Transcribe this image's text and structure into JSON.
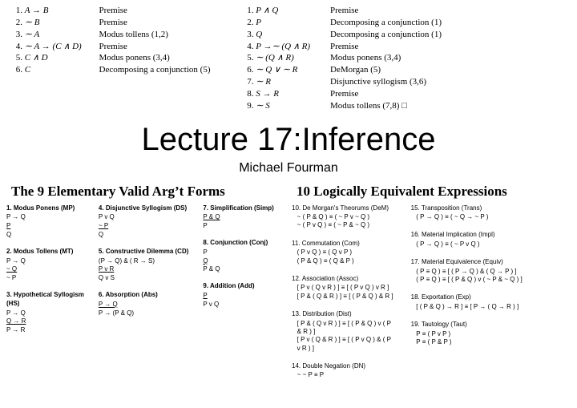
{
  "proofs": {
    "left": [
      {
        "n": "1.",
        "e": "A → B",
        "j": "Premise"
      },
      {
        "n": "2.",
        "e": "∼ B",
        "j": "Premise"
      },
      {
        "n": "3.",
        "e": "∼ A",
        "j": "Modus tollens (1,2)"
      },
      {
        "n": "4.",
        "e": "∼ A → (C ∧ D)",
        "j": "Premise"
      },
      {
        "n": "5.",
        "e": "C ∧ D",
        "j": "Modus ponens (3,4)"
      },
      {
        "n": "6.",
        "e": "C",
        "j": "Decomposing a conjunction (5)"
      }
    ],
    "right": [
      {
        "n": "1.",
        "e": "P ∧ Q",
        "j": "Premise"
      },
      {
        "n": "2.",
        "e": "P",
        "j": "Decomposing a conjunction (1)"
      },
      {
        "n": "3.",
        "e": "Q",
        "j": "Decomposing a conjunction (1)"
      },
      {
        "n": "4.",
        "e": "P →∼ (Q ∧ R)",
        "j": "Premise"
      },
      {
        "n": "5.",
        "e": "∼ (Q ∧ R)",
        "j": "Modus ponens (3,4)"
      },
      {
        "n": "6.",
        "e": "∼ Q ∨ ∼ R",
        "j": "DeMorgan (5)"
      },
      {
        "n": "7.",
        "e": "∼ R",
        "j": "Disjunctive syllogism (3,6)"
      },
      {
        "n": "8.",
        "e": "S → R",
        "j": "Premise"
      },
      {
        "n": "9.",
        "e": "∼ S",
        "j": "Modus tollens (7,8)   □"
      }
    ]
  },
  "title": "Lecture 17:Inference",
  "author": "Michael Fourman",
  "leftPanel": {
    "heading": "The 9 Elementary Valid Arg’t Forms",
    "cols": [
      [
        {
          "t": "1. Modus Ponens (MP)",
          "lines": [
            "P → Q",
            "<u>P        </u>",
            "Q"
          ]
        },
        {
          "t": "2. Modus Tollens (MT)",
          "lines": [
            "P → Q",
            "<u>~ Q      </u>",
            "~ P"
          ]
        },
        {
          "t": "3. Hypothetical Syllogism\n      (HS)",
          "lines": [
            "P → Q",
            "<u>Q → R  </u>",
            "P → R"
          ]
        }
      ],
      [
        {
          "t": "4. Disjunctive Syllogism (DS)",
          "lines": [
            "P v Q",
            "<u>~ P     </u>",
            "Q"
          ]
        },
        {
          "t": "5. Constructive Dilemma (CD)",
          "lines": [
            "(P → Q) & ( R → S)",
            "<u>P v R                  </u>",
            "Q v S"
          ]
        },
        {
          "t": "6. Absorption (Abs)",
          "lines": [
            "<u>P → Q        </u>",
            "P → (P & Q)"
          ]
        }
      ],
      [
        {
          "t": "7. Simplification (Simp)",
          "lines": [
            "<u>P & Q  </u>",
            "P"
          ]
        },
        {
          "t": "8. Conjunction (Conj)",
          "lines": [
            "P",
            "<u>Q       </u>",
            "P & Q"
          ]
        },
        {
          "t": "9. Addition (Add)",
          "lines": [
            "<u>P       </u>",
            "P v Q"
          ]
        }
      ]
    ]
  },
  "rightPanel": {
    "heading": "10 Logically Equivalent Expressions",
    "cols": [
      [
        {
          "t": "10. De Morgan's Theorums (DeM)",
          "lines": [
            "~ ( P & Q ) ≡ ( ~ P v ~ Q )",
            "~ ( P v Q ) ≡ ( ~ P & ~ Q )"
          ]
        },
        {
          "t": "11. Commutation (Com)",
          "lines": [
            "( P v Q ) ≡ ( Q v P )",
            "( P & Q ) ≡ ( Q & P )"
          ]
        },
        {
          "t": "12. Association (Assoc)",
          "lines": [
            "[ P v ( Q v R ) ] ≡ [ ( P v Q ) v R ]",
            "[ P & ( Q & R ) ] ≡ [ ( P & Q ) & R ]"
          ]
        },
        {
          "t": "13. Distribution (Dist)",
          "lines": [
            "[ P & ( Q v R ) ] ≡ [ ( P & Q ) v ( P\n   & R ) ]",
            "[ P v ( Q & R ) ] ≡ [ ( P v Q ) & ( P\n   v R ) ]"
          ]
        },
        {
          "t": "14. Double Negation (DN)",
          "lines": [
            "~ ~ P ≡ P"
          ]
        }
      ],
      [
        {
          "t": "15. Transposition (Trans)",
          "lines": [
            "( P → Q ) ≡ ( ~ Q → ~ P )"
          ]
        },
        {
          "t": "16. Material Implication (Impl)",
          "lines": [
            "( P → Q ) ≡ ( ~ P v Q )"
          ]
        },
        {
          "t": "17. Material Equivalence (Equiv)",
          "lines": [
            "( P ≡ Q ) ≡ [ ( P → Q ) & ( Q → P ) ]",
            "( P ≡ Q ) ≡ [ ( P & Q ) v ( ~ P & ~ Q ) ]"
          ]
        },
        {
          "t": "18. Exportation (Exp)",
          "lines": [
            "[ ( P & Q ) → R ] ≡ [ P → ( Q → R ) ]"
          ]
        },
        {
          "t": "19. Tautology (Taut)",
          "lines": [
            "P ≡ ( P v P )",
            "P ≡ ( P & P )"
          ]
        }
      ]
    ]
  }
}
